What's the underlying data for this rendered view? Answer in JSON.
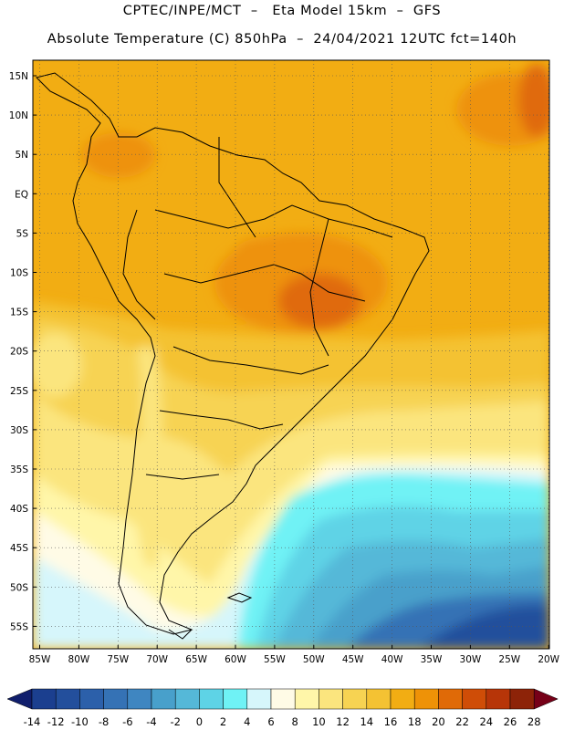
{
  "header": {
    "line1": "CPTEC/INPE/MCT  –   Eta Model 15km  –  GFS",
    "line2": "Absolute Temperature (C) 850hPa  –  24/04/2021 12UTC fct=140h"
  },
  "axes": {
    "lat_labels": [
      "15N",
      "10N",
      "5N",
      "EQ",
      "5S",
      "10S",
      "15S",
      "20S",
      "25S",
      "30S",
      "35S",
      "40S",
      "45S",
      "50S",
      "55S"
    ],
    "lon_labels": [
      "85W",
      "80W",
      "75W",
      "70W",
      "65W",
      "60W",
      "55W",
      "50W",
      "45W",
      "40W",
      "35W",
      "30W",
      "25W",
      "20W"
    ]
  },
  "colorbar": {
    "labels": [
      "-14",
      "-12",
      "-10",
      "-8",
      "-6",
      "-4",
      "-2",
      "0",
      "2",
      "4",
      "6",
      "8",
      "10",
      "12",
      "14",
      "16",
      "18",
      "20",
      "22",
      "24",
      "26",
      "28"
    ],
    "colors": [
      "#1b3f8f",
      "#234f9c",
      "#2c60aa",
      "#3572b5",
      "#3f86c1",
      "#48a0cb",
      "#55b8d8",
      "#5ed3e6",
      "#6ff2f5",
      "#d6f6fb",
      "#fffbe6",
      "#fff6a9",
      "#fbe57e",
      "#f7d352",
      "#f4c233",
      "#f2ad13",
      "#ee9207",
      "#e06a07",
      "#cf4d07",
      "#b73508",
      "#8d2308"
    ],
    "end_low": "#101e6c",
    "end_high": "#760018"
  }
}
